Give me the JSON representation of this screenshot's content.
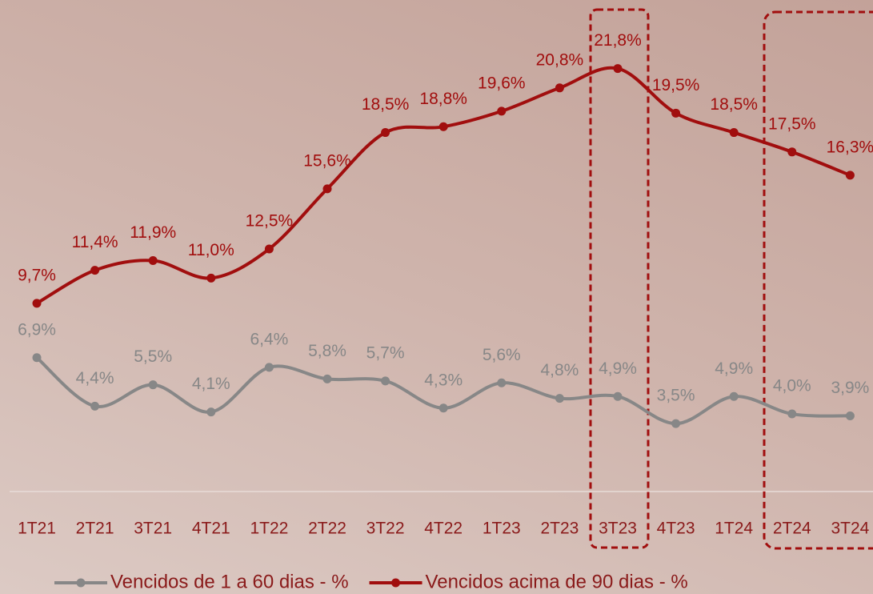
{
  "chart_data": {
    "type": "line",
    "categories": [
      "1T21",
      "2T21",
      "3T21",
      "4T21",
      "1T22",
      "2T22",
      "3T22",
      "4T22",
      "1T23",
      "2T23",
      "3T23",
      "4T23",
      "1T24",
      "2T24",
      "3T24"
    ],
    "ylim": [
      0,
      25
    ],
    "series": [
      {
        "name": "Vencidos de 1 a 60 dias - %",
        "color": "#878787",
        "values": [
          6.9,
          4.4,
          5.5,
          4.1,
          6.4,
          5.8,
          5.7,
          4.3,
          5.6,
          4.8,
          4.9,
          3.5,
          4.9,
          4.0,
          3.9
        ],
        "value_labels": [
          "6,9%",
          "4,4%",
          "5,5%",
          "4,1%",
          "6,4%",
          "5,8%",
          "5,7%",
          "4,3%",
          "5,6%",
          "4,8%",
          "4,9%",
          "3,5%",
          "4,9%",
          "4,0%",
          "3,9%"
        ]
      },
      {
        "name": "Vencidos acima de 90 dias - %",
        "color": "#a10e0e",
        "values": [
          9.7,
          11.4,
          11.9,
          11.0,
          12.5,
          15.6,
          18.5,
          18.8,
          19.6,
          20.8,
          21.8,
          19.5,
          18.5,
          17.5,
          16.3
        ],
        "value_labels": [
          "9,7%",
          "11,4%",
          "11,9%",
          "11,0%",
          "12,5%",
          "15,6%",
          "18,5%",
          "18,8%",
          "19,6%",
          "20,8%",
          "21,8%",
          "19,5%",
          "18,5%",
          "17,5%",
          "16,3%"
        ]
      }
    ]
  }
}
